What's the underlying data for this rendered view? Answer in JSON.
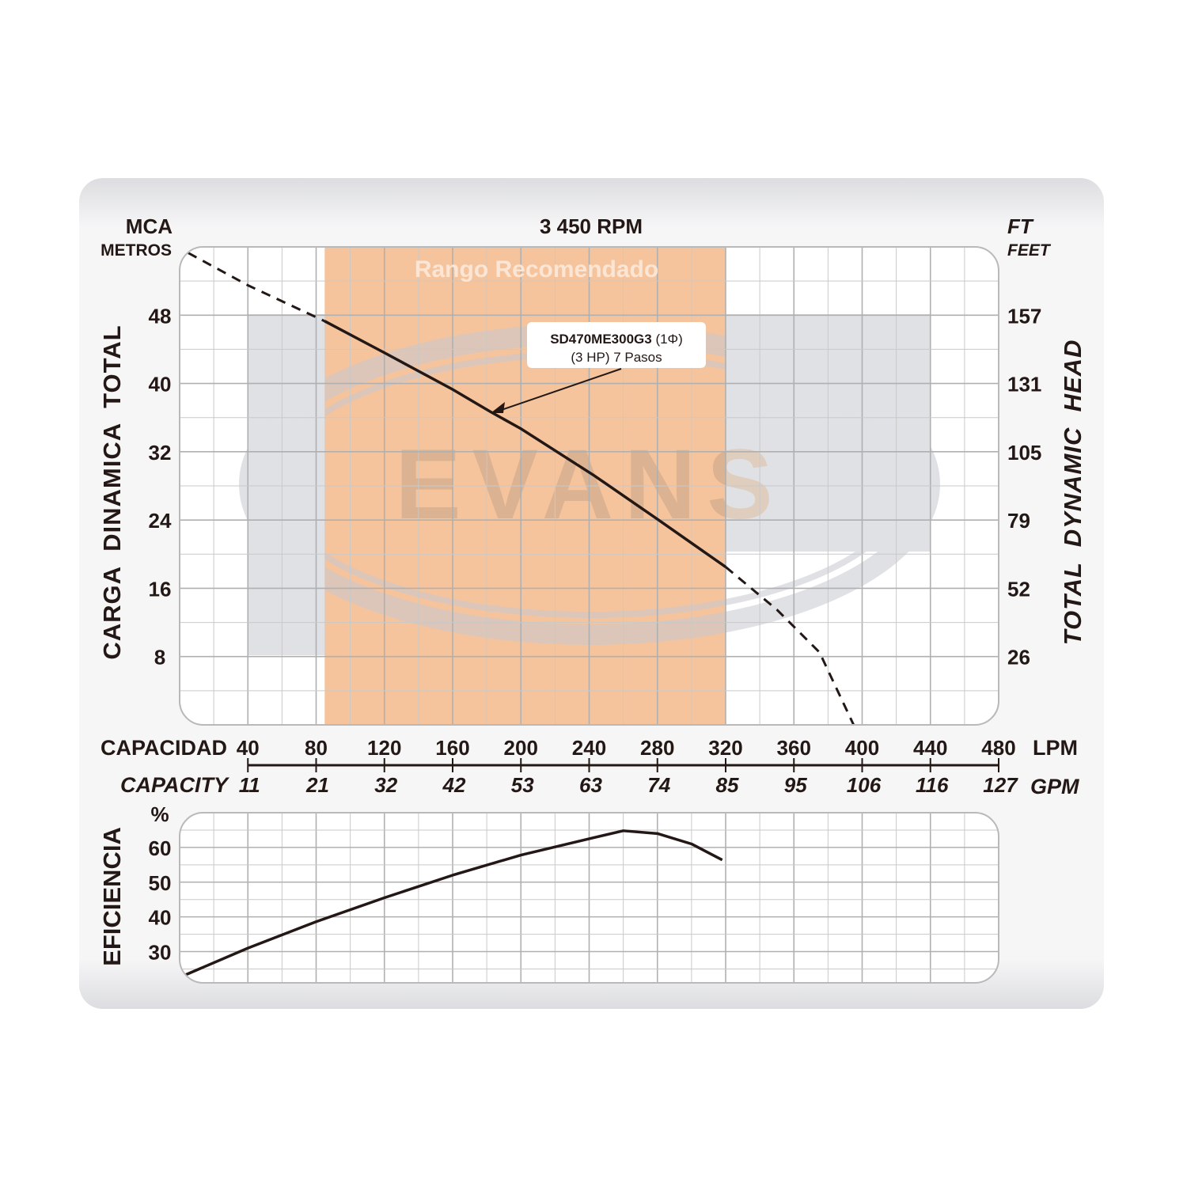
{
  "chart_data": [
    {
      "type": "line",
      "title": "3 450 RPM",
      "xlabel": "CAPACIDAD",
      "xlabel_secondary": "CAPACITY",
      "x_unit": "LPM",
      "x_unit_secondary": "GPM",
      "ylabel": "CARGA  DINAMICA  TOTAL",
      "ylabel_right": "TOTAL  DYNAMIC  HEAD",
      "y_unit": "MCA",
      "y_unit_sub": "METROS",
      "y_unit_right": "FT",
      "y_unit_right_sub": "FEET",
      "xlim": [
        0,
        480
      ],
      "ylim": [
        0,
        56
      ],
      "grid": true,
      "x_ticks": [
        "40",
        "80",
        "120",
        "160",
        "200",
        "240",
        "280",
        "320",
        "360",
        "400",
        "440",
        "480"
      ],
      "x_ticks_secondary": [
        "11",
        "21",
        "32",
        "42",
        "53",
        "63",
        "74",
        "85",
        "95",
        "106",
        "116",
        "127"
      ],
      "y_ticks": [
        "8",
        "16",
        "24",
        "32",
        "40",
        "48"
      ],
      "y_ticks_right": [
        "26",
        "52",
        "79",
        "105",
        "131",
        "157"
      ],
      "recommended_range": {
        "label": "Rango Recomendado",
        "x": [
          85,
          320
        ],
        "color": "#f6c49c"
      },
      "series": [
        {
          "name": "SD470ME300G3",
          "annotation": {
            "line1_bold": "SD470ME300G3",
            "line1_rest": " (1Φ)",
            "line2": "(3 HP)  7 Pasos",
            "points_to": [
              182,
              36.7
            ]
          },
          "x": [
            5,
            40,
            85,
            120,
            160,
            182,
            200,
            243,
            280,
            320,
            350,
            375,
            395
          ],
          "y": [
            55.3,
            51.5,
            47.3,
            43.6,
            39.3,
            36.7,
            34.7,
            29.2,
            24.1,
            18.5,
            13.5,
            8.5,
            0
          ],
          "solid_range": [
            85,
            320
          ]
        }
      ]
    },
    {
      "type": "line",
      "ylabel": "EFICIENCIA",
      "y_unit": "%",
      "xlim": [
        0,
        480
      ],
      "ylim": [
        21,
        70
      ],
      "grid": true,
      "y_ticks": [
        "30",
        "40",
        "50",
        "60"
      ],
      "series": [
        {
          "x": [
            2,
            40,
            80,
            120,
            160,
            200,
            240,
            260,
            280,
            300,
            318
          ],
          "y": [
            23,
            31,
            38.6,
            45.5,
            52,
            57.8,
            62.5,
            64.8,
            64,
            61,
            56.4
          ]
        }
      ]
    }
  ],
  "watermark": {
    "logo_text": "EVANS",
    "registered": "®"
  }
}
